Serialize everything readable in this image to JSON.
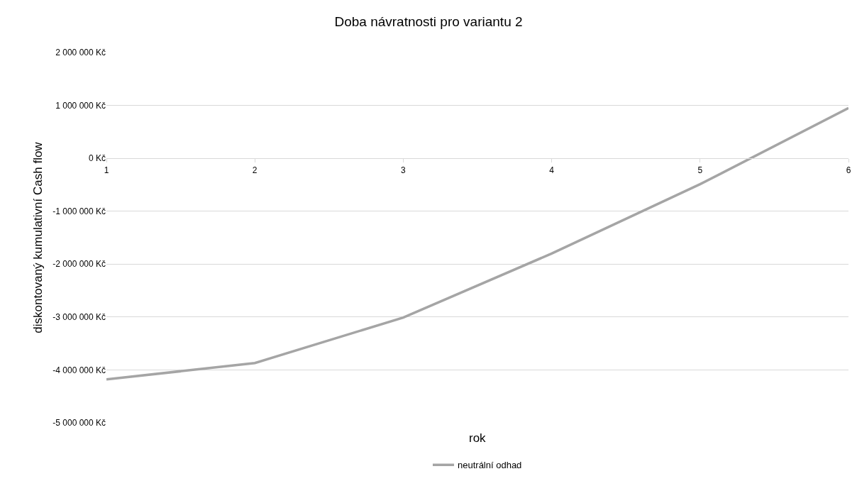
{
  "chart_data": {
    "type": "line",
    "title": "Doba návratnosti pro variantu 2",
    "xlabel": "rok",
    "ylabel": "diskontovaný kumulativní Cash flow",
    "x": [
      1,
      2,
      3,
      4,
      5,
      6
    ],
    "series": [
      {
        "name": "neutrální odhad",
        "color": "#a5a5a5",
        "values": [
          -4180000,
          -3870000,
          -3010000,
          -1800000,
          -490000,
          950000
        ]
      }
    ],
    "xlim": [
      1,
      6
    ],
    "xticks": [
      1,
      2,
      3,
      4,
      5,
      6
    ],
    "ylim": [
      -5000000,
      2000000
    ],
    "yticks": [
      {
        "value": -5000000,
        "label": "-5 000 000 Kč"
      },
      {
        "value": -4000000,
        "label": "-4 000 000 Kč"
      },
      {
        "value": -3000000,
        "label": "-3 000 000 Kč"
      },
      {
        "value": -2000000,
        "label": "-2 000 000 Kč"
      },
      {
        "value": -1000000,
        "label": "-1 000 000 Kč"
      },
      {
        "value": 0,
        "label": "0 Kč"
      },
      {
        "value": 1000000,
        "label": "1 000 000 Kč"
      },
      {
        "value": 2000000,
        "label": "2 000 000 Kč"
      }
    ],
    "grid": "y",
    "legend": "bottom",
    "marker": "none",
    "line_style": "solid"
  }
}
